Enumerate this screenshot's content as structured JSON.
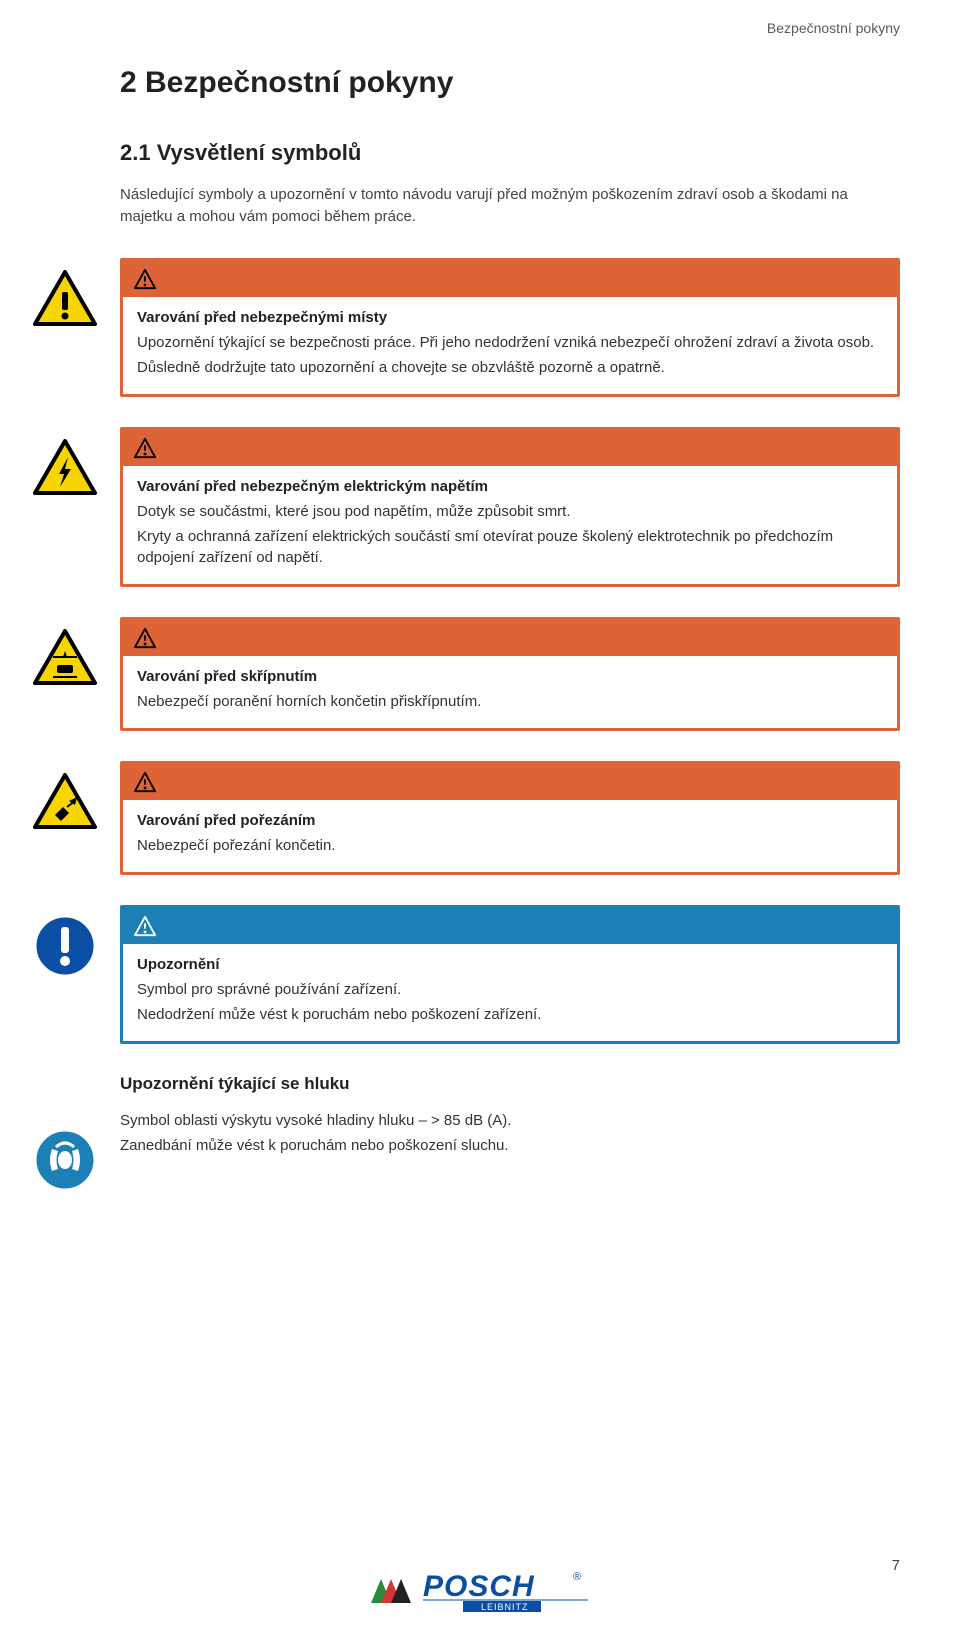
{
  "header": {
    "right": "Bezpečnostní pokyny"
  },
  "title": "2 Bezpečnostní pokyny",
  "subtitle": "2.1 Vysvětlení symbolů",
  "intro": "Následující symboly a upozornění v tomto návodu varují před možným poškozením zdraví osob a škodami na majetku a mohou vám pomoci během práce.",
  "colors": {
    "orange": "#dd6437",
    "blue": "#1c80b6",
    "yellow": "#f7d500",
    "triBorder": "#000000",
    "circleBlue": "#0a4fa3"
  },
  "warnings": [
    {
      "iconType": "triangle-exclaim",
      "headerColor": "orange",
      "title": "Varování před nebezpečnými místy",
      "lines": [
        "Upozornění týkající se bezpečnosti práce. Při jeho nedodržení vzniká nebezpečí ohrožení zdraví a života osob.",
        "Důsledně dodržujte tato upozornění a chovejte se obzvláště pozorně a opatrně."
      ]
    },
    {
      "iconType": "triangle-bolt",
      "headerColor": "orange",
      "title": "Varování před nebezpečným elektrickým napětím",
      "lines": [
        "Dotyk se součástmi, které jsou pod napětím, může způsobit smrt.",
        "Kryty a ochranná zařízení elektrických součástí smí otevírat pouze školený elektrotechnik po předchozím odpojení zařízení od napětí."
      ]
    },
    {
      "iconType": "triangle-crush",
      "headerColor": "orange",
      "title": "Varování před skřípnutím",
      "lines": [
        "Nebezpečí poranění horních končetin přiskřípnutím."
      ]
    },
    {
      "iconType": "triangle-cut",
      "headerColor": "orange",
      "title": "Varování před pořezáním",
      "lines": [
        "Nebezpečí pořezání končetin."
      ]
    },
    {
      "iconType": "circle-exclaim",
      "headerColor": "blue",
      "title": "Upozornění",
      "lines": [
        "Symbol pro správné používání zařízení.",
        "Nedodržení může vést k poruchám nebo poškození zařízení."
      ]
    }
  ],
  "noise": {
    "title": "Upozornění týkající se hluku",
    "lines": [
      "Symbol oblasti výskytu vysoké hladiny hluku – > 85 dB (A).",
      "Zanedbání může vést k poruchám nebo poškození sluchu."
    ]
  },
  "footer": {
    "brand": "POSCH",
    "sub": "LEIBNITZ",
    "reg": "®"
  },
  "pageNumber": "7"
}
